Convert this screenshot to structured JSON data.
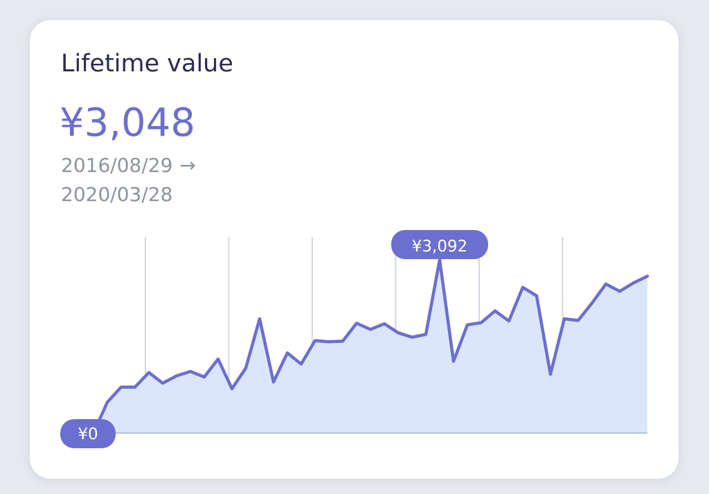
{
  "card": {
    "title": "Lifetime value",
    "value": "¥3,048",
    "date_start": "2016/08/29",
    "date_end": "2020/03/28",
    "arrow_icon": "arrow-right-icon"
  },
  "colors": {
    "background": "#e7e9ef",
    "card": "#ffffff",
    "title": "#2d2b52",
    "accent": "#6b6fcf",
    "area_fill": "#dce6fa",
    "muted_text": "#8e939c",
    "gridline": "#d3d6de"
  },
  "chart_data": {
    "type": "area",
    "series": [
      {
        "values": [
          0,
          550,
          820,
          820,
          1080,
          890,
          1020,
          1100,
          1000,
          1320,
          790,
          1160,
          2040,
          910,
          1430,
          1230,
          1650,
          1630,
          1640,
          1960,
          1850,
          1950,
          1790,
          1710,
          1760,
          3092,
          1280,
          1930,
          1970,
          2180,
          2000,
          2600,
          2450,
          1050,
          2040,
          2010,
          2320,
          2660,
          2530,
          2680,
          2800
        ]
      }
    ],
    "ylim": [
      0,
      3500
    ],
    "gridlines": "vertical",
    "gridline_count": 6,
    "labels": {
      "start": "¥0",
      "peak": "¥3,092",
      "peak_index": 25
    }
  }
}
